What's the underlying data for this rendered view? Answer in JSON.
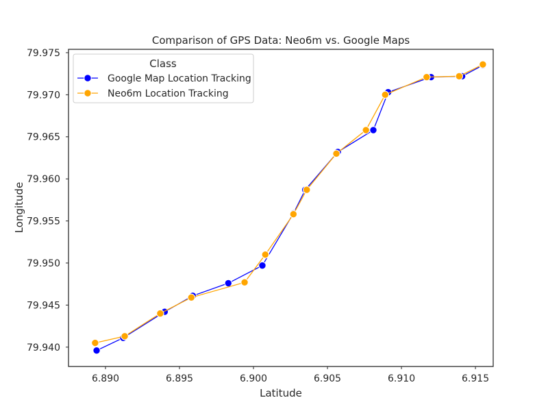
{
  "chart_data": {
    "type": "line",
    "title": "Comparison of GPS Data: Neo6m vs. Google Maps",
    "xlabel": "Latitude",
    "ylabel": "Longitude",
    "xlim": [
      6.8875,
      6.9162
    ],
    "ylim": [
      79.9377,
      79.9754
    ],
    "xticks": [
      6.89,
      6.895,
      6.9,
      6.905,
      6.91,
      6.915
    ],
    "xtick_labels": [
      "6.890",
      "6.895",
      "6.900",
      "6.905",
      "6.910",
      "6.915"
    ],
    "yticks": [
      79.94,
      79.945,
      79.95,
      79.955,
      79.96,
      79.965,
      79.97,
      79.975
    ],
    "ytick_labels": [
      "79.940",
      "79.945",
      "79.950",
      "79.955",
      "79.960",
      "79.965",
      "79.970",
      "79.975"
    ],
    "grid": false,
    "legend": {
      "title": "Class",
      "placement": "top-left"
    },
    "series": [
      {
        "name": "Google Map Location Tracking",
        "color": "#0000ff",
        "x": [
          6.8894,
          6.8912,
          6.894,
          6.8959,
          6.8983,
          6.9006,
          6.9027,
          6.9035,
          6.9057,
          6.9081,
          6.9091,
          6.912,
          6.9141,
          6.9155
        ],
        "y": [
          79.9396,
          79.9411,
          79.9442,
          79.9461,
          79.9476,
          79.9497,
          79.9559,
          79.9587,
          79.9632,
          79.9658,
          79.9703,
          79.9721,
          79.9722,
          79.9735
        ]
      },
      {
        "name": "Neo6m Location Tracking",
        "color": "#ffa500",
        "x": [
          6.8893,
          6.8913,
          6.8937,
          6.8958,
          6.8994,
          6.9008,
          6.9027,
          6.9036,
          6.9056,
          6.9076,
          6.9089,
          6.9117,
          6.9139,
          6.9155
        ],
        "y": [
          79.9405,
          79.9413,
          79.944,
          79.9459,
          79.9477,
          79.951,
          79.9558,
          79.9587,
          79.963,
          79.9658,
          79.97,
          79.9721,
          79.9722,
          79.9736
        ]
      }
    ]
  }
}
